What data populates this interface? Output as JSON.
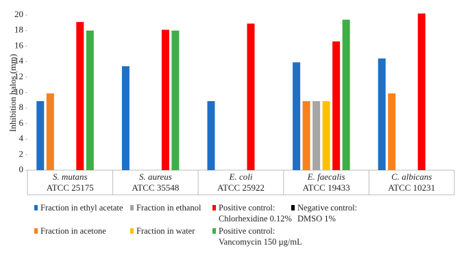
{
  "chart_data": {
    "type": "bar",
    "y_label": "Inhibition halos (mm)",
    "categories": [
      "S. mutans",
      "S. aureus",
      "E. coli",
      "E. faecalis",
      "C. albicans"
    ],
    "category_strains": [
      "ATCC 25175",
      "ATCC 35548",
      "ATCC 25922",
      "ATCC 19433",
      "ATCC 10231"
    ],
    "series": [
      {
        "name": "Fraction in ethyl acetate",
        "color": "#1f6fc5",
        "values": [
          8.9,
          13.4,
          8.9,
          13.9,
          14.4
        ]
      },
      {
        "name": "Fraction in acetone",
        "color": "#f58220",
        "values": [
          9.9,
          null,
          null,
          8.9,
          9.9
        ]
      },
      {
        "name": "Fraction in ethanol",
        "color": "#a5a5a5",
        "values": [
          null,
          null,
          null,
          8.9,
          null
        ]
      },
      {
        "name": "Fraction in water",
        "color": "#ffc000",
        "values": [
          null,
          null,
          null,
          8.9,
          null
        ]
      },
      {
        "name": "Positive control:\nChlorhexidine 0.12%",
        "color": "#ff0000",
        "values": [
          19.1,
          18.1,
          18.9,
          16.6,
          20.2
        ]
      },
      {
        "name": "Positive control:\nVancomycin 150 µg/mL",
        "color": "#3fae49",
        "values": [
          18.0,
          18.0,
          null,
          19.4,
          null
        ]
      },
      {
        "name": "Negative control:\nDMSO 1%",
        "color": "#000000",
        "values": [
          null,
          null,
          null,
          null,
          null
        ]
      }
    ],
    "ylim": [
      0,
      20
    ],
    "yticks": [
      0,
      2,
      4,
      6,
      8,
      10,
      12,
      14,
      16,
      18,
      20
    ]
  }
}
